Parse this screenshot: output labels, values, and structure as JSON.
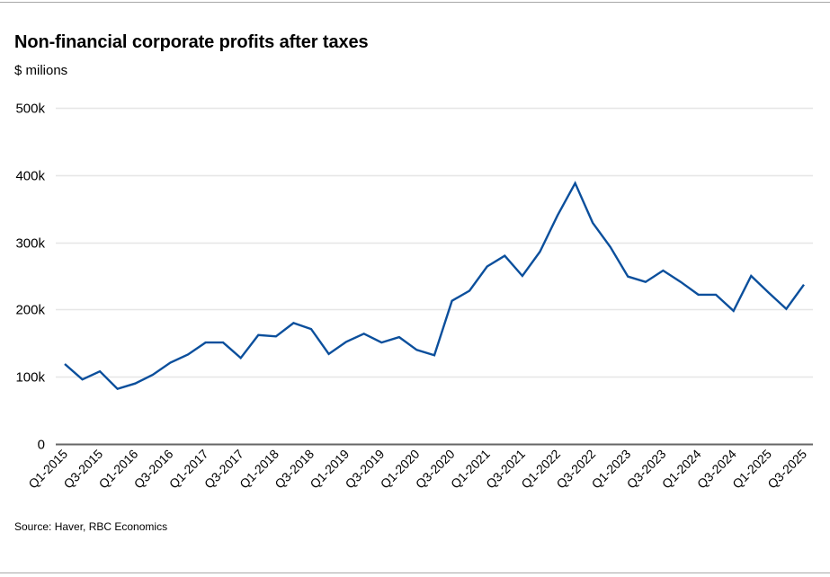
{
  "header": {
    "title": "Non-financial corporate profits after taxes",
    "subtitle": "$ milions"
  },
  "footer": {
    "source": "Source: Haver, RBC Economics"
  },
  "colors": {
    "line": "#0b4f9c",
    "grid": "#e6e6e6",
    "axis": "#666666"
  },
  "chart_data": {
    "type": "line",
    "title": "Non-financial corporate profits after taxes",
    "subtitle": "$ milions",
    "xlabel": "",
    "ylabel": "$ milions",
    "ylim": [
      0,
      500000
    ],
    "yticks": [
      0,
      100000,
      200000,
      300000,
      400000,
      500000
    ],
    "ytick_labels": [
      "0",
      "100k",
      "200k",
      "300k",
      "400k",
      "500k"
    ],
    "grid": true,
    "legend": "none",
    "x": [
      "Q1-2015",
      "Q2-2015",
      "Q3-2015",
      "Q4-2015",
      "Q1-2016",
      "Q2-2016",
      "Q3-2016",
      "Q4-2016",
      "Q1-2017",
      "Q2-2017",
      "Q3-2017",
      "Q4-2017",
      "Q1-2018",
      "Q2-2018",
      "Q3-2018",
      "Q4-2018",
      "Q1-2019",
      "Q2-2019",
      "Q3-2019",
      "Q4-2019",
      "Q1-2020",
      "Q2-2020",
      "Q3-2020",
      "Q4-2020",
      "Q1-2021",
      "Q2-2021",
      "Q3-2021",
      "Q4-2021",
      "Q1-2022",
      "Q2-2022",
      "Q3-2022",
      "Q4-2022",
      "Q1-2023",
      "Q2-2023",
      "Q3-2023",
      "Q4-2023",
      "Q1-2024",
      "Q2-2024",
      "Q3-2024",
      "Q4-2024",
      "Q1-2025",
      "Q2-2025",
      "Q3-2025"
    ],
    "xtick_labels": [
      "Q1-2015",
      "Q3-2015",
      "Q1-2016",
      "Q3-2016",
      "Q1-2017",
      "Q3-2017",
      "Q1-2018",
      "Q3-2018",
      "Q1-2019",
      "Q3-2019",
      "Q1-2020",
      "Q3-2020",
      "Q1-2021",
      "Q3-2021",
      "Q1-2022",
      "Q3-2022",
      "Q1-2023",
      "Q3-2023",
      "Q1-2024",
      "Q3-2024",
      "Q1-2025",
      "Q3-2025"
    ],
    "series": [
      {
        "name": "Non-financial corporate profits after taxes",
        "values": [
          119000,
          96000,
          108000,
          82000,
          90000,
          103000,
          121000,
          133000,
          151000,
          151000,
          128000,
          162000,
          160000,
          180000,
          171000,
          134000,
          152000,
          164000,
          151000,
          159000,
          140000,
          132000,
          213000,
          228000,
          264000,
          280000,
          250000,
          286000,
          340000,
          388000,
          329000,
          293000,
          249000,
          241000,
          258000,
          241000,
          222000,
          222000,
          198000,
          250000,
          225000,
          201000,
          237000
        ]
      }
    ]
  }
}
